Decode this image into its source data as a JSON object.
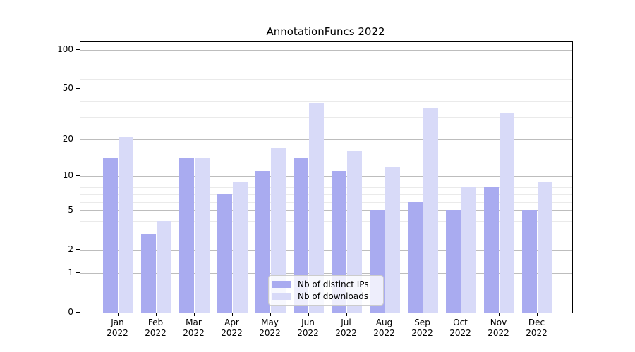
{
  "chart_data": {
    "type": "bar",
    "title": "AnnotationFuncs 2022",
    "xlabel": "",
    "ylabel": "",
    "yscale": "symlog-like (log10 of value+1), 0 at baseline",
    "ylim": [
      0,
      117
    ],
    "grid": "on",
    "legend_position": "lower center inside plot",
    "categories": [
      "Jan 2022",
      "Feb 2022",
      "Mar 2022",
      "Apr 2022",
      "May 2022",
      "Jun 2022",
      "Jul 2022",
      "Aug 2022",
      "Sep 2022",
      "Oct 2022",
      "Nov 2022",
      "Dec 2022"
    ],
    "category_months": [
      "Jan",
      "Feb",
      "Mar",
      "Apr",
      "May",
      "Jun",
      "Jul",
      "Aug",
      "Sep",
      "Oct",
      "Nov",
      "Dec"
    ],
    "category_year": "2022",
    "series": [
      {
        "name": "Nb of distinct IPs",
        "color": "#a9abf0",
        "values": [
          14,
          3,
          14,
          7,
          11,
          14,
          11,
          5,
          6,
          5,
          8,
          5
        ]
      },
      {
        "name": "Nb of downloads",
        "color": "#d8daf8",
        "values": [
          21,
          4,
          14,
          9,
          17,
          39,
          16,
          12,
          35,
          8,
          32,
          9
        ]
      }
    ],
    "y_ticks_major": [
      0,
      1,
      2,
      5,
      10,
      20,
      50,
      100
    ],
    "y_gridlines_minor": [
      3,
      4,
      6,
      7,
      8,
      9,
      30,
      40,
      60,
      70,
      80,
      90
    ]
  },
  "colors": {
    "grid_major": "#bdbdbd",
    "grid_minor": "#eaeaea",
    "spine": "#000000",
    "text": "#000000",
    "legend_border": "#cccccc"
  }
}
